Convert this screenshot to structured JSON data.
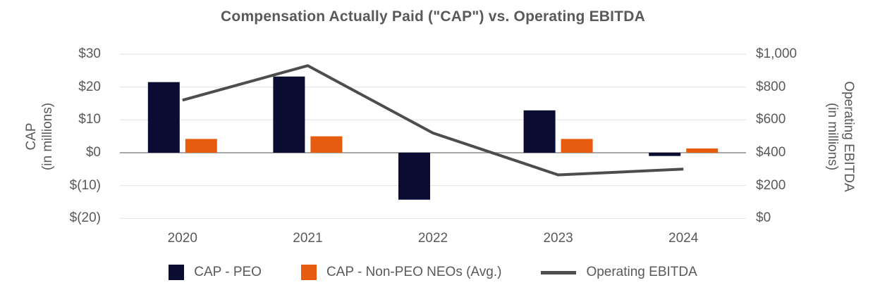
{
  "title": "Compensation Actually Paid (\"CAP\") vs. Operating EBITDA",
  "colors": {
    "peo_bar": "#0A0C32",
    "neo_bar": "#E75C0F",
    "ebitda_line": "#4D4D4D",
    "text": "#595959",
    "gridline": "#E4E4E4",
    "zero_line": "#8C8C8C",
    "background": "#FFFFFF"
  },
  "left_axis": {
    "title_line1": "CAP",
    "title_line2": "(in millions)",
    "ticks": [
      "$30",
      "$20",
      "$10",
      "$0",
      "$(10)",
      "$(20)"
    ],
    "tick_values": [
      30,
      20,
      10,
      0,
      -10,
      -20
    ]
  },
  "right_axis": {
    "title_line1": "Operating EBITDA",
    "title_line2": "(in millions)",
    "ticks": [
      "$1,000",
      "$800",
      "$600",
      "$400",
      "$200",
      "$0"
    ],
    "tick_values": [
      1000,
      800,
      600,
      400,
      200,
      0
    ]
  },
  "x_axis": {
    "labels": [
      "2020",
      "2021",
      "2022",
      "2023",
      "2024"
    ]
  },
  "legend": {
    "items": [
      {
        "label": "CAP - PEO",
        "swatch": "square",
        "color": "#0A0C32"
      },
      {
        "label": "CAP - Non-PEO NEOs (Avg.)",
        "swatch": "square",
        "color": "#E75C0F"
      },
      {
        "label": "Operating EBITDA",
        "swatch": "line",
        "color": "#4D4D4D"
      }
    ]
  },
  "chart_data": {
    "type": "combo_bar_line",
    "title": "Compensation Actually Paid (\"CAP\") vs. Operating EBITDA",
    "categories": [
      "2020",
      "2021",
      "2022",
      "2023",
      "2024"
    ],
    "series": [
      {
        "name": "CAP - PEO",
        "type": "bar",
        "axis": "left",
        "color": "#0A0C32",
        "values": [
          21.5,
          23.2,
          -14.3,
          12.9,
          -1.0
        ]
      },
      {
        "name": "CAP - Non-PEO NEOs (Avg.)",
        "type": "bar",
        "axis": "left",
        "color": "#E75C0F",
        "values": [
          4.2,
          5.0,
          0,
          4.2,
          1.3
        ]
      },
      {
        "name": "Operating EBITDA",
        "type": "line",
        "axis": "right",
        "color": "#4D4D4D",
        "values": [
          720,
          930,
          520,
          265,
          300
        ]
      }
    ],
    "left_ylabel": "CAP (in millions)",
    "right_ylabel": "Operating EBITDA (in millions)",
    "left_ylim": [
      -20,
      30
    ],
    "right_ylim": [
      0,
      1000
    ],
    "grid": true,
    "legend_position": "bottom"
  }
}
